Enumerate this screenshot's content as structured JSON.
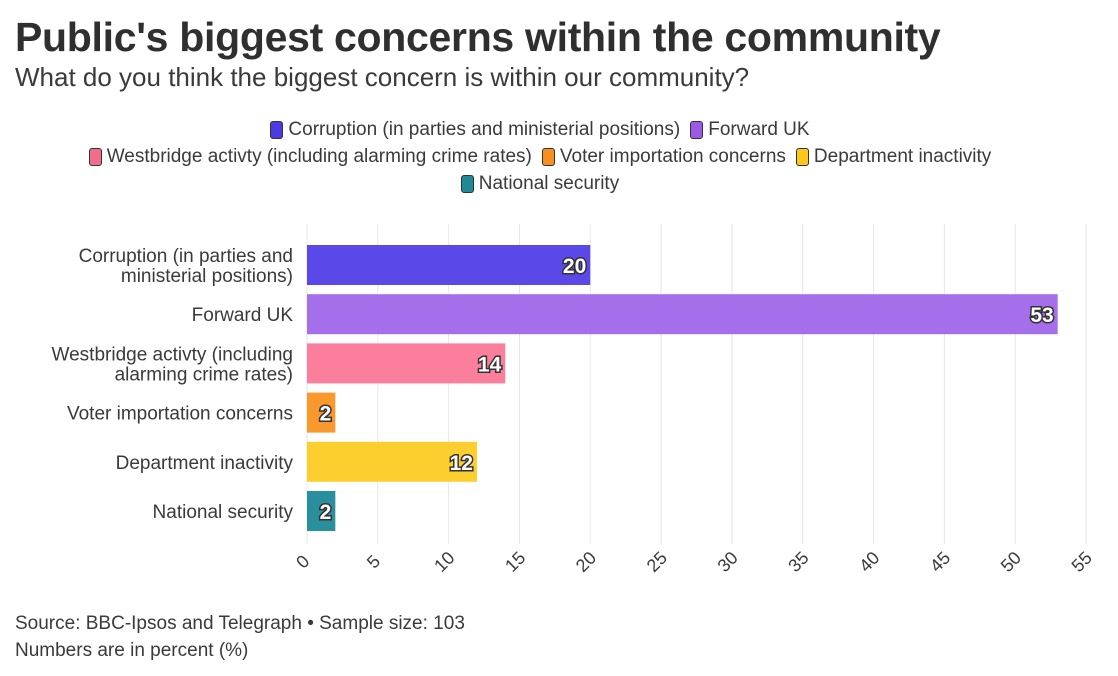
{
  "header": {
    "title": "Public's biggest concerns within the community",
    "subtitle": "What do you think the biggest concern is within our community?"
  },
  "legend": {
    "rows": [
      [
        {
          "label": "Corruption (in parties and ministerial positions)",
          "color": "#4b3be0"
        },
        {
          "label": "Forward UK",
          "color": "#9b59e6"
        }
      ],
      [
        {
          "label": "Westbridge activty (including alarming crime rates)",
          "color": "#f26d8c"
        },
        {
          "label": "Voter importation concerns",
          "color": "#f5901e"
        },
        {
          "label": "Department inactivity",
          "color": "#fdc81c"
        }
      ],
      [
        {
          "label": "National security",
          "color": "#1f8a96"
        }
      ]
    ]
  },
  "chart_data": {
    "type": "bar",
    "orientation": "horizontal",
    "categories": [
      [
        "Corruption (in parties and",
        "ministerial positions)"
      ],
      [
        "Forward UK"
      ],
      [
        "Westbridge activty (including",
        "alarming crime rates)"
      ],
      [
        "Voter importation concerns"
      ],
      [
        "Department inactivity"
      ],
      [
        "National security"
      ]
    ],
    "values": [
      20,
      53,
      14,
      2,
      12,
      2
    ],
    "colors": [
      "#5b48e8",
      "#a56eea",
      "#fb7f9c",
      "#f8982d",
      "#fdcf2e",
      "#2a8f9c"
    ],
    "xlim": [
      0,
      55
    ],
    "xticks": [
      0,
      5,
      10,
      15,
      20,
      25,
      30,
      35,
      40,
      45,
      50,
      55
    ],
    "grid": true,
    "legend_position": "top"
  },
  "footer": {
    "source": "Source: BBC-Ipsos and Telegraph • Sample size: 103",
    "note": "Numbers are in percent (%)"
  }
}
